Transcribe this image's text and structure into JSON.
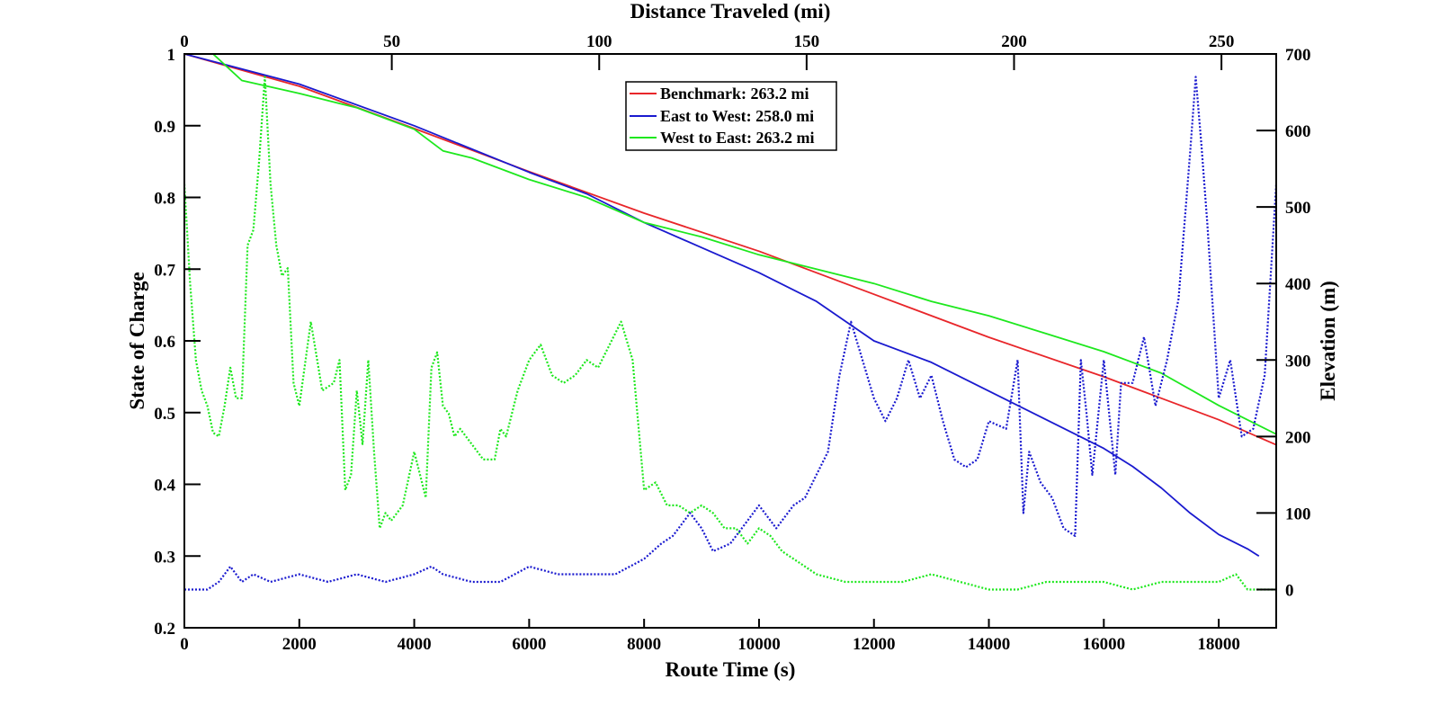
{
  "chart_data": {
    "type": "line",
    "title": "",
    "xlabel": "Route Time (s)",
    "x2label": "Distance Traveled (mi)",
    "ylabel": "State of Charge",
    "y2label": "Elevation (m)",
    "xlim": [
      0,
      19000
    ],
    "x2lim": [
      0,
      263.2
    ],
    "ylim": [
      0.2,
      1
    ],
    "y2lim": [
      -50,
      700
    ],
    "xticks": [
      "0",
      "2000",
      "4000",
      "6000",
      "8000",
      "10000",
      "12000",
      "14000",
      "16000",
      "18000"
    ],
    "x2ticks": [
      "0",
      "50",
      "100",
      "150",
      "200",
      "250"
    ],
    "yticks": [
      "0.2",
      "0.3",
      "0.4",
      "0.5",
      "0.6",
      "0.7",
      "0.8",
      "0.9",
      "1"
    ],
    "y2ticks": [
      "0",
      "100",
      "200",
      "300",
      "400",
      "500",
      "600",
      "700"
    ],
    "grid": false,
    "legend_position": "top-center",
    "legend": [
      "Benchmark: 263.2 mi",
      "East to West: 258.0 mi",
      "West to East: 263.2 mi"
    ],
    "colors": {
      "benchmark": "#e8262a",
      "east_to_west": "#1a1acf",
      "west_to_east": "#1ee81e"
    },
    "series": [
      {
        "name": "Benchmark: 263.2 mi",
        "axis": "left",
        "style": "solid",
        "color": "#e8262a",
        "x": [
          0,
          2000,
          4000,
          6000,
          8000,
          10000,
          12000,
          14000,
          16000,
          17000,
          18000,
          19000
        ],
        "values": [
          1.0,
          0.955,
          0.896,
          0.836,
          0.778,
          0.725,
          0.665,
          0.605,
          0.55,
          0.52,
          0.49,
          0.455
        ]
      },
      {
        "name": "East to West: 258.0 mi",
        "axis": "left",
        "style": "solid",
        "color": "#1a1acf",
        "x": [
          0,
          2000,
          4000,
          6000,
          7000,
          8000,
          9000,
          10000,
          11000,
          12000,
          13000,
          14000,
          15000,
          16000,
          16500,
          17000,
          17500,
          18000,
          18500,
          18700
        ],
        "values": [
          1.0,
          0.958,
          0.9,
          0.835,
          0.805,
          0.765,
          0.73,
          0.695,
          0.655,
          0.6,
          0.57,
          0.53,
          0.49,
          0.45,
          0.425,
          0.395,
          0.36,
          0.33,
          0.31,
          0.3
        ]
      },
      {
        "name": "West to East: 263.2 mi",
        "axis": "left",
        "style": "solid",
        "color": "#1ee81e",
        "x": [
          0,
          500,
          1000,
          2000,
          3000,
          4000,
          4500,
          5000,
          6000,
          7000,
          8000,
          9000,
          10000,
          11000,
          12000,
          13000,
          14000,
          15000,
          16000,
          17000,
          18000,
          19000
        ],
        "values": [
          1.0,
          1.0,
          0.963,
          0.945,
          0.925,
          0.895,
          0.865,
          0.855,
          0.825,
          0.8,
          0.765,
          0.745,
          0.72,
          0.7,
          0.68,
          0.655,
          0.635,
          0.61,
          0.585,
          0.555,
          0.51,
          0.47
        ]
      },
      {
        "name": "",
        "axis": "right",
        "style": "dotted",
        "color": "#1ee81e",
        "x": [
          0,
          100,
          200,
          300,
          400,
          500,
          600,
          700,
          800,
          900,
          1000,
          1100,
          1200,
          1300,
          1400,
          1500,
          1600,
          1700,
          1800,
          1900,
          2000,
          2200,
          2400,
          2600,
          2700,
          2800,
          2900,
          3000,
          3100,
          3200,
          3300,
          3400,
          3500,
          3600,
          3800,
          4000,
          4200,
          4300,
          4400,
          4500,
          4600,
          4700,
          4800,
          5000,
          5200,
          5400,
          5500,
          5600,
          5800,
          6000,
          6200,
          6400,
          6600,
          6800,
          7000,
          7200,
          7400,
          7600,
          7800,
          8000,
          8200,
          8400,
          8600,
          8800,
          9000,
          9200,
          9400,
          9600,
          9800,
          10000,
          10200,
          10400,
          10600,
          10800,
          11000,
          11500,
          12000,
          12500,
          13000,
          13500,
          14000,
          14500,
          15000,
          15500,
          16000,
          16500,
          17000,
          17500,
          18000,
          18300,
          18500,
          18700,
          19000
        ],
        "values": [
          530,
          400,
          300,
          260,
          240,
          205,
          200,
          240,
          290,
          250,
          250,
          450,
          470,
          560,
          670,
          530,
          450,
          410,
          420,
          270,
          240,
          350,
          260,
          270,
          300,
          130,
          150,
          260,
          190,
          300,
          180,
          80,
          100,
          90,
          110,
          180,
          120,
          290,
          310,
          240,
          230,
          200,
          210,
          190,
          170,
          170,
          210,
          200,
          260,
          300,
          320,
          280,
          270,
          280,
          300,
          290,
          320,
          350,
          300,
          130,
          140,
          110,
          110,
          100,
          110,
          100,
          80,
          80,
          60,
          80,
          70,
          50,
          40,
          30,
          20,
          10,
          10,
          10,
          20,
          10,
          0,
          0,
          10,
          10,
          10,
          0,
          10,
          10,
          10,
          20,
          0,
          0,
          0
        ]
      },
      {
        "name": "",
        "axis": "right",
        "style": "dotted",
        "color": "#1a1acf",
        "x": [
          0,
          400,
          600,
          700,
          800,
          1000,
          1200,
          1500,
          2000,
          2500,
          3000,
          3500,
          4000,
          4300,
          4500,
          5000,
          5500,
          6000,
          6500,
          7000,
          7500,
          8000,
          8300,
          8500,
          8800,
          9000,
          9200,
          9500,
          9800,
          10000,
          10300,
          10600,
          10800,
          11000,
          11200,
          11400,
          11600,
          11800,
          12000,
          12200,
          12400,
          12600,
          12800,
          13000,
          13200,
          13400,
          13600,
          13800,
          14000,
          14300,
          14500,
          14600,
          14700,
          14900,
          15100,
          15300,
          15500,
          15600,
          15700,
          15800,
          16000,
          16200,
          16300,
          16500,
          16700,
          16900,
          17100,
          17300,
          17500,
          17600,
          17700,
          17800,
          18000,
          18200,
          18400,
          18600,
          18800,
          19000
        ],
        "values": [
          0,
          0,
          10,
          20,
          30,
          10,
          20,
          10,
          20,
          10,
          20,
          10,
          20,
          30,
          20,
          10,
          10,
          30,
          20,
          20,
          20,
          40,
          60,
          70,
          100,
          80,
          50,
          60,
          90,
          110,
          80,
          110,
          120,
          150,
          180,
          280,
          350,
          300,
          250,
          220,
          250,
          300,
          250,
          280,
          220,
          170,
          160,
          170,
          220,
          210,
          300,
          100,
          180,
          140,
          120,
          80,
          70,
          300,
          230,
          150,
          300,
          150,
          270,
          270,
          330,
          240,
          300,
          380,
          570,
          670,
          580,
          480,
          250,
          300,
          200,
          210,
          280,
          530
        ]
      }
    ]
  }
}
